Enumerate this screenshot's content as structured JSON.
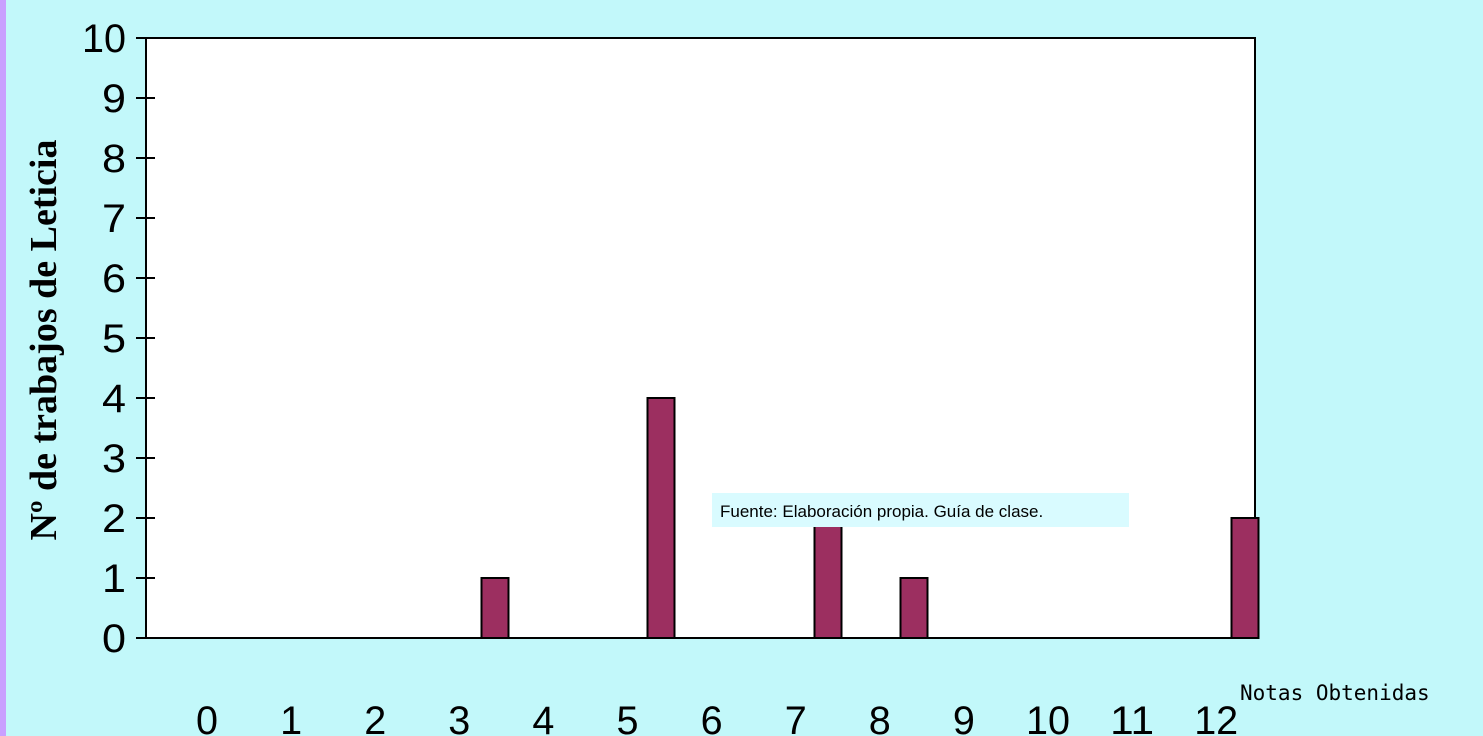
{
  "chart_data": {
    "type": "bar",
    "categories": [
      "0",
      "1",
      "2",
      "3",
      "4",
      "5",
      "6",
      "7",
      "8",
      "9",
      "10",
      "11",
      "12"
    ],
    "values": [
      0,
      0,
      0,
      1,
      0,
      4,
      0,
      2,
      1,
      0,
      0,
      0,
      2
    ],
    "xlabel": "Notas Obtenidas",
    "ylabel": "Nº de trabajos de Leticia",
    "ylim": [
      0,
      10
    ],
    "yticks": [
      "0",
      "1",
      "2",
      "3",
      "4",
      "5",
      "6",
      "7",
      "8",
      "9",
      "10"
    ],
    "annotation": "Fuente: Elaboración propia. Guía de clase.",
    "bar_color": "#9c2f60",
    "background": "#c2f8fa",
    "grid": false
  }
}
